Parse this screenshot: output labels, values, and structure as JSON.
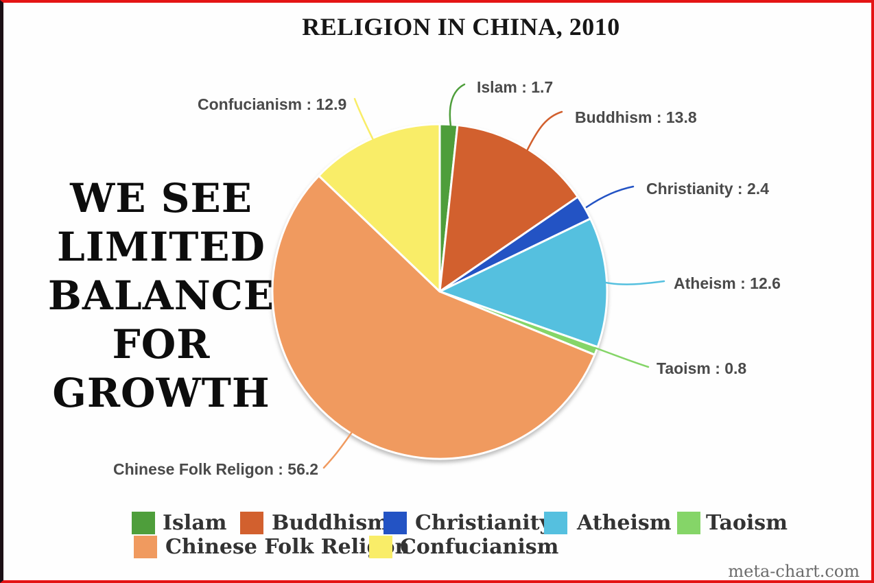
{
  "title": "RELIGION IN CHINA, 2010",
  "statement": {
    "full_text": "WE SEE LIMITED BALANCE FOR GROWTH",
    "lines": [
      "WE SEE",
      "LIMITED",
      "BALANCE",
      "FOR",
      "GROWTH"
    ]
  },
  "chart_data": {
    "type": "pie",
    "title": "RELIGION IN CHINA, 2010",
    "categories": [
      "Islam",
      "Buddhism",
      "Christianity",
      "Atheism",
      "Taoism",
      "Chinese Folk Religon",
      "Confucianism"
    ],
    "values": [
      1.7,
      13.8,
      2.4,
      12.6,
      0.8,
      56.2,
      12.9
    ],
    "colors": [
      "#4e9e3b",
      "#d2602e",
      "#2353c4",
      "#55c0df",
      "#85d568",
      "#f09a5f",
      "#f9ed68"
    ],
    "slice_gap_color": "#ffffff",
    "start_angle_deg": 0,
    "direction": "clockwise",
    "legend_position": "bottom",
    "annotations": [
      "Islam : 1.7",
      "Buddhism : 13.8",
      "Christianity : 2.4",
      "Atheism : 12.6",
      "Taoism : 0.8",
      "Chinese Folk Religon : 56.2",
      "Confucianism : 12.9"
    ]
  },
  "callouts": [
    {
      "text": "Islam : 1.7"
    },
    {
      "text": "Buddhism : 13.8"
    },
    {
      "text": "Christianity : 2.4"
    },
    {
      "text": "Atheism : 12.6"
    },
    {
      "text": "Taoism : 0.8"
    },
    {
      "text": "Chinese Folk Religon : 56.2"
    },
    {
      "text": "Confucianism : 12.9"
    }
  ],
  "legend": {
    "items": [
      "Islam",
      "Buddhism",
      "Christianity",
      "Atheism",
      "Taoism",
      "Chinese Folk Religon",
      "Confucianism"
    ]
  },
  "watermark": "meta-chart.com",
  "frame": {
    "border_color": "#e41414",
    "left_border_color": "#1c1016",
    "background": "#fefefe"
  }
}
